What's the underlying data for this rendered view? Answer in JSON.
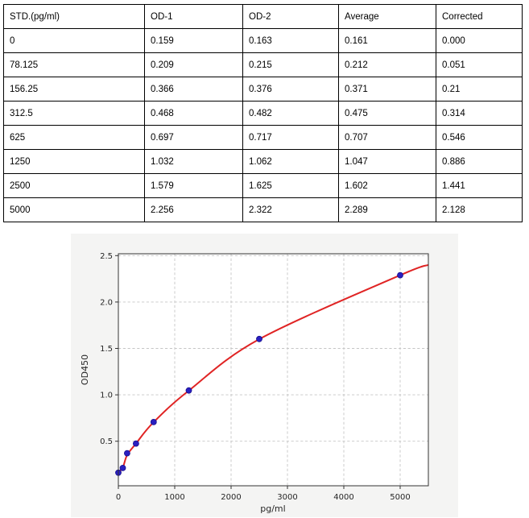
{
  "table": {
    "headers": [
      "STD.(pg/ml)",
      "OD-1",
      "OD-2",
      "Average",
      "Corrected"
    ],
    "rows": [
      [
        "0",
        "0.159",
        "0.163",
        "0.161",
        "0.000"
      ],
      [
        "78.125",
        "0.209",
        "0.215",
        "0.212",
        "0.051"
      ],
      [
        "156.25",
        "0.366",
        "0.376",
        "0.371",
        "0.21"
      ],
      [
        "312.5",
        "0.468",
        "0.482",
        "0.475",
        "0.314"
      ],
      [
        "625",
        "0.697",
        "0.717",
        "0.707",
        "0.546"
      ],
      [
        "1250",
        "1.032",
        "1.062",
        "1.047",
        "0.886"
      ],
      [
        "2500",
        "1.579",
        "1.625",
        "1.602",
        "1.441"
      ],
      [
        "5000",
        "2.256",
        "2.322",
        "2.289",
        "2.128"
      ]
    ]
  },
  "chart_data": {
    "type": "scatter",
    "title": "",
    "xlabel": "pg/ml",
    "ylabel": "OD450",
    "xlim": [
      0,
      5500
    ],
    "ylim": [
      0.02,
      2.52
    ],
    "grid": true,
    "legend": "none",
    "x_ticks": [
      0,
      1000,
      2000,
      3000,
      4000,
      5000
    ],
    "x_tick_labels": [
      "0",
      "1000",
      "2000",
      "3000",
      "4000",
      "5000"
    ],
    "y_ticks": [
      0.5,
      1.0,
      1.5,
      2.0,
      2.5
    ],
    "y_tick_labels": [
      "0.5",
      "1.0",
      "1.5",
      "2.0",
      "2.5"
    ],
    "points": {
      "name": "standards-average-od450",
      "x": [
        0,
        78.125,
        156.25,
        312.5,
        625,
        1250,
        2500,
        5000
      ],
      "y": [
        0.161,
        0.212,
        0.371,
        0.475,
        0.707,
        1.047,
        1.602,
        2.289
      ]
    },
    "fit_curve": {
      "name": "fitted-standard-curve",
      "x": [
        0,
        78.125,
        156.25,
        312.5,
        625,
        1250,
        2500,
        5000,
        5500
      ],
      "y": [
        0.168,
        0.215,
        0.352,
        0.475,
        0.705,
        1.045,
        1.6,
        2.289,
        2.4
      ]
    },
    "colors": {
      "curve": "#e02424",
      "marker": "#2a1fc0",
      "marker_edge": "#17108f",
      "grid": "#c6c6c6",
      "spine": "#333333",
      "plot_bg": "#ffffff",
      "panel_bg": "#f4f4f3"
    }
  }
}
